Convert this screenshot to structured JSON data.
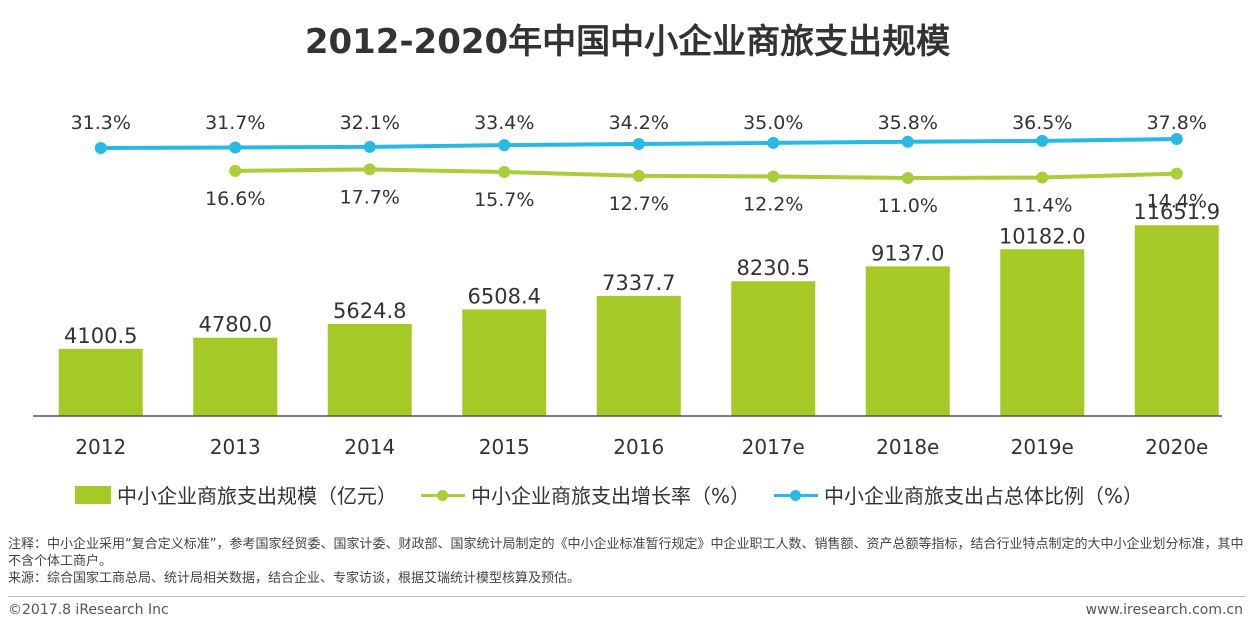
{
  "chart_data": {
    "type": "bar",
    "title": "2012-2020年中国中小企业商旅支出规模",
    "categories": [
      "2012",
      "2013",
      "2014",
      "2015",
      "2016",
      "2017e",
      "2018e",
      "2019e",
      "2020e"
    ],
    "series": [
      {
        "name": "中小企业商旅支出规模（亿元）",
        "kind": "bar",
        "values": [
          4100.5,
          4780.0,
          5624.8,
          6508.4,
          7337.7,
          8230.5,
          9137.0,
          10182.0,
          11651.9
        ],
        "labels": [
          "4100.5",
          "4780.0",
          "5624.8",
          "6508.4",
          "7337.7",
          "8230.5",
          "9137.0",
          "10182.0",
          "11651.9"
        ]
      },
      {
        "name": "中小企业商旅支出增长率（%）",
        "kind": "line",
        "values": [
          null,
          16.6,
          17.7,
          15.7,
          12.7,
          12.2,
          11.0,
          11.4,
          14.4
        ],
        "labels": [
          "",
          "16.6%",
          "17.7%",
          "15.7%",
          "12.7%",
          "12.2%",
          "11.0%",
          "11.4%",
          "14.4%"
        ]
      },
      {
        "name": "中小企业商旅支出占总体比例（%）",
        "kind": "line",
        "values": [
          31.3,
          31.7,
          32.1,
          33.4,
          34.2,
          35.0,
          35.8,
          36.5,
          37.8
        ],
        "labels": [
          "31.3%",
          "31.7%",
          "32.1%",
          "33.4%",
          "34.2%",
          "35.0%",
          "35.8%",
          "36.5%",
          "37.8%"
        ]
      }
    ],
    "colors": {
      "bar": "#a5c926",
      "growth": "#a9ce3a",
      "share": "#29b9e3"
    }
  },
  "legend": {
    "bar": "中小企业商旅支出规模（亿元）",
    "growth": "中小企业商旅支出增长率（%）",
    "share": "中小企业商旅支出占总体比例（%）"
  },
  "notes": {
    "note": "注释：中小企业采用“复合定义标准”，参考国家经贸委、国家计委、财政部、国家统计局制定的《中小企业标准暂行规定》中企业职工人数、销售额、资产总额等指标，结合行业特点制定的大中小企业划分标准，其中不含个体工商户。",
    "source": "来源：综合国家工商总局、统计局相关数据，结合企业、专家访谈，根据艾瑞统计模型核算及预估。"
  },
  "footer": {
    "copyright": "©2017.8 iResearch Inc",
    "website": "www.iresearch.com.cn"
  }
}
